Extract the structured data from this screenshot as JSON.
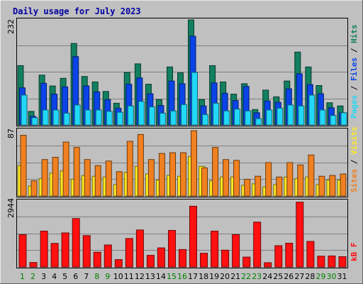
{
  "chart_data": [
    {
      "type": "bar",
      "title": "Daily usage for July 2023",
      "categories": [
        "1",
        "2",
        "3",
        "4",
        "5",
        "6",
        "7",
        "8",
        "9",
        "10",
        "11",
        "12",
        "13",
        "14",
        "15",
        "16",
        "17",
        "18",
        "19",
        "20",
        "21",
        "22",
        "23",
        "24",
        "25",
        "26",
        "27",
        "28",
        "29",
        "30",
        "31"
      ],
      "weekend_days": [
        "1",
        "2",
        "8",
        "9",
        "15",
        "16",
        "22",
        "23",
        "29",
        "30"
      ],
      "ymax_label": "232",
      "ylim": [
        0,
        232
      ],
      "series": [
        {
          "name": "Hits",
          "color": "#128060",
          "values": [
            131,
            30,
            110,
            86,
            103,
            180,
            107,
            95,
            74,
            48,
            116,
            135,
            90,
            56,
            128,
            115,
            232,
            56,
            131,
            95,
            68,
            91,
            34,
            77,
            62,
            97,
            161,
            128,
            87,
            49,
            42
          ]
        },
        {
          "name": "Files",
          "color": "#0a44e8",
          "values": [
            82,
            19,
            92,
            68,
            84,
            151,
            86,
            73,
            56,
            37,
            90,
            104,
            69,
            43,
            97,
            91,
            196,
            42,
            93,
            70,
            54,
            85,
            27,
            53,
            50,
            80,
            113,
            89,
            69,
            38,
            27
          ]
        },
        {
          "name": "Pages",
          "color": "#22d8f8",
          "values": [
            66,
            16,
            33,
            33,
            26,
            44,
            33,
            33,
            30,
            28,
            42,
            52,
            40,
            26,
            31,
            45,
            116,
            23,
            48,
            31,
            35,
            31,
            14,
            33,
            37,
            44,
            42,
            66,
            33,
            21,
            27
          ]
        }
      ],
      "legend": [
        "Pages",
        "Files",
        "Hits"
      ]
    },
    {
      "type": "bar",
      "categories": [
        "1",
        "2",
        "3",
        "4",
        "5",
        "6",
        "7",
        "8",
        "9",
        "10",
        "11",
        "12",
        "13",
        "14",
        "15",
        "16",
        "17",
        "18",
        "19",
        "20",
        "21",
        "22",
        "23",
        "24",
        "25",
        "26",
        "27",
        "28",
        "29",
        "30",
        "31"
      ],
      "ymax_label": "87",
      "ylim": [
        0,
        87
      ],
      "series": [
        {
          "name": "Visits",
          "color": "#ffe820",
          "values": [
            40,
            13,
            23,
            30,
            33,
            22,
            27,
            26,
            25,
            15,
            31,
            39,
            29,
            21,
            27,
            26,
            52,
            39,
            20,
            25,
            25,
            14,
            16,
            12,
            15,
            25,
            23,
            25,
            15,
            21,
            21
          ]
        },
        {
          "name": "Sites",
          "color": "#f08020",
          "values": [
            80,
            20,
            48,
            51,
            71,
            64,
            48,
            40,
            46,
            32,
            72,
            81,
            48,
            56,
            57,
            57,
            86,
            37,
            64,
            48,
            47,
            22,
            26,
            44,
            25,
            44,
            41,
            54,
            26,
            27,
            29
          ]
        }
      ],
      "legend": [
        "Sites",
        "Visits"
      ]
    },
    {
      "type": "bar",
      "categories": [
        "1",
        "2",
        "3",
        "4",
        "5",
        "6",
        "7",
        "8",
        "9",
        "10",
        "11",
        "12",
        "13",
        "14",
        "15",
        "16",
        "17",
        "18",
        "19",
        "20",
        "21",
        "22",
        "23",
        "24",
        "25",
        "26",
        "27",
        "28",
        "29",
        "30",
        "31"
      ],
      "ymax_label": "2944",
      "ylim": [
        0,
        2944
      ],
      "series": [
        {
          "name": "kB F",
          "color": "#ff1010",
          "values": [
            1440,
            200,
            1600,
            1050,
            1520,
            2160,
            1400,
            660,
            980,
            330,
            1270,
            1650,
            520,
            850,
            1630,
            780,
            2710,
            610,
            1600,
            750,
            1440,
            440,
            2000,
            190,
            950,
            1060,
            2890,
            1140,
            480,
            490,
            460
          ]
        }
      ],
      "legend": [
        "kB F"
      ]
    }
  ],
  "colors": {
    "background": "#c0c0c0",
    "weekday_label": "#008000",
    "weekend_label": "#008000",
    "title": "#0000a0"
  }
}
